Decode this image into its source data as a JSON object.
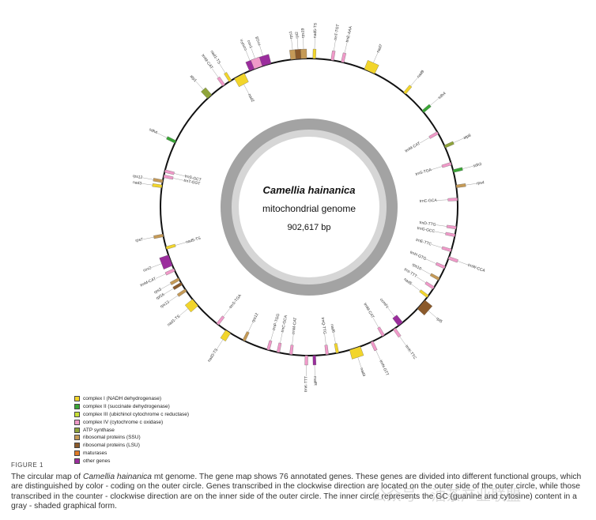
{
  "center": {
    "species": "Camellia hainanica",
    "subtitle": "mitochondrial genome",
    "length": "902,617 bp"
  },
  "legend": [
    {
      "label": "complex I (NADH dehydrogenase)",
      "color": "#f2d52b"
    },
    {
      "label": "complex II (succinate dehydrogenase)",
      "color": "#3aa636"
    },
    {
      "label": "complex III (ubichinol cytochrome c reductase)",
      "color": "#c7df37"
    },
    {
      "label": "complex IV (cytochrome c oxidase)",
      "color": "#f09ac9"
    },
    {
      "label": "ATP synthase",
      "color": "#8fa43b"
    },
    {
      "label": "ribosomal proteins (SSU)",
      "color": "#c59a57"
    },
    {
      "label": "ribosomal proteins (LSU)",
      "color": "#8b5a2b"
    },
    {
      "label": "maturases",
      "color": "#e07b27"
    },
    {
      "label": "other genes",
      "color": "#9b2d9d"
    }
  ],
  "genes": [
    {
      "name": "rrn18",
      "angle": -17,
      "strand": "out",
      "color": "#9b2d9d",
      "w": 4
    },
    {
      "name": "ccmFn",
      "angle": -22,
      "strand": "out",
      "color": "#9b2d9d",
      "w": 3
    },
    {
      "name": "rps1",
      "angle": -6,
      "strand": "out",
      "color": "#c59a57",
      "w": 2
    },
    {
      "name": "rpl2",
      "angle": -4,
      "strand": "out",
      "color": "#8b5a2b",
      "w": 2
    },
    {
      "name": "rps19",
      "angle": -2,
      "strand": "out",
      "color": "#c59a57",
      "w": 2
    },
    {
      "name": "nad5-TS",
      "angle": 2,
      "strand": "out",
      "color": "#f2d52b",
      "w": 1
    },
    {
      "name": "trnT-TGT",
      "angle": 9,
      "strand": "out",
      "color": "#f09ac9",
      "w": 1
    },
    {
      "name": "trnE-AAA",
      "angle": 13,
      "strand": "out",
      "color": "#f09ac9",
      "w": 1
    },
    {
      "name": "nad7",
      "angle": 24,
      "strand": "out",
      "color": "#f2d52b",
      "w": 4
    },
    {
      "name": "nad9",
      "angle": 40,
      "strand": "out",
      "color": "#f2d52b",
      "w": 1
    },
    {
      "name": "sdh4",
      "angle": 50,
      "strand": "out",
      "color": "#3aa636",
      "w": 1
    },
    {
      "name": "trnM-CAT",
      "angle": 60,
      "strand": "in",
      "color": "#f09ac9",
      "w": 1
    },
    {
      "name": "atp8",
      "angle": 66,
      "strand": "out",
      "color": "#8fa43b",
      "w": 1
    },
    {
      "name": "trnS-TGA",
      "angle": 73,
      "strand": "in",
      "color": "#f09ac9",
      "w": 1
    },
    {
      "name": "sdh3",
      "angle": 76,
      "strand": "out",
      "color": "#3aa636",
      "w": 1
    },
    {
      "name": "rps4",
      "angle": 82,
      "strand": "out",
      "color": "#c59a57",
      "w": 1
    },
    {
      "name": "trnC-GCA",
      "angle": 87,
      "strand": "in",
      "color": "#f09ac9",
      "w": 1
    },
    {
      "name": "trnD-TTG",
      "angle": 98,
      "strand": "in",
      "color": "#f09ac9",
      "w": 1
    },
    {
      "name": "trnG-GCC",
      "angle": 101,
      "strand": "in",
      "color": "#f09ac9",
      "w": 1
    },
    {
      "name": "trnE-TTC",
      "angle": 107,
      "strand": "in",
      "color": "#f09ac9",
      "w": 1
    },
    {
      "name": "trnW-CCA",
      "angle": 110,
      "strand": "out",
      "color": "#f09ac9",
      "w": 1
    },
    {
      "name": "trnH-GTG",
      "angle": 114,
      "strand": "in",
      "color": "#f09ac9",
      "w": 1
    },
    {
      "name": "rps10",
      "angle": 119,
      "strand": "in",
      "color": "#c59a57",
      "w": 1
    },
    {
      "name": "trnI-TTT",
      "angle": 123,
      "strand": "in",
      "color": "#f09ac9",
      "w": 1
    },
    {
      "name": "nad5",
      "angle": 127,
      "strand": "in",
      "color": "#f2d52b",
      "w": 1
    },
    {
      "name": "rpl5",
      "angle": 131,
      "strand": "out",
      "color": "#8b5a2b",
      "w": 4
    },
    {
      "name": "ccmFc",
      "angle": 142,
      "strand": "in",
      "color": "#9b2d9d",
      "w": 2
    },
    {
      "name": "trnK-TTC",
      "angle": 145,
      "strand": "out",
      "color": "#f09ac9",
      "w": 1
    },
    {
      "name": "trnM-CAT",
      "angle": 150,
      "strand": "in",
      "color": "#f09ac9",
      "w": 1
    },
    {
      "name": "trnN-GTT",
      "angle": 155,
      "strand": "out",
      "color": "#f09ac9",
      "w": 1
    },
    {
      "name": "nad4",
      "angle": 162,
      "strand": "out",
      "color": "#f2d52b",
      "w": 4
    },
    {
      "name": "nad6",
      "angle": 169,
      "strand": "in",
      "color": "#f2d52b",
      "w": 1
    },
    {
      "name": "trnQ-TTG",
      "angle": 173,
      "strand": "in",
      "color": "#f09ac9",
      "w": 1
    },
    {
      "name": "matR",
      "angle": 178,
      "strand": "out",
      "color": "#9b2d9d",
      "w": 1
    },
    {
      "name": "trnK-TTT",
      "angle": 181,
      "strand": "out",
      "color": "#f09ac9",
      "w": 1
    },
    {
      "name": "trnM-CAT",
      "angle": 187,
      "strand": "in",
      "color": "#f09ac9",
      "w": 1
    },
    {
      "name": "trnC-GCA",
      "angle": 192,
      "strand": "in",
      "color": "#f09ac9",
      "w": 1
    },
    {
      "name": "trnP-TGG",
      "angle": 196,
      "strand": "in",
      "color": "#f09ac9",
      "w": 1
    },
    {
      "name": "rps12",
      "angle": 206,
      "strand": "in",
      "color": "#c59a57",
      "w": 1
    },
    {
      "name": "nad3-TS",
      "angle": 213,
      "strand": "out",
      "color": "#f2d52b",
      "w": 2
    },
    {
      "name": "trnS-TGA",
      "angle": 218,
      "strand": "in",
      "color": "#f09ac9",
      "w": 1
    },
    {
      "name": "nad1-TS",
      "angle": 230,
      "strand": "out",
      "color": "#f2d52b",
      "w": 3
    },
    {
      "name": "rps13",
      "angle": 236,
      "strand": "out",
      "color": "#c59a57",
      "w": 1
    },
    {
      "name": "rpl16",
      "angle": 239,
      "strand": "out",
      "color": "#8b5a2b",
      "w": 1
    },
    {
      "name": "rps3",
      "angle": 241,
      "strand": "out",
      "color": "#c59a57",
      "w": 1
    },
    {
      "name": "trnM-CAT",
      "angle": 245,
      "strand": "out",
      "color": "#f09ac9",
      "w": 1
    },
    {
      "name": "cox2",
      "angle": 249,
      "strand": "out",
      "color": "#9b2d9d",
      "w": 4
    },
    {
      "name": "nad5-TS",
      "angle": 254,
      "strand": "in",
      "color": "#f2d52b",
      "w": 1
    },
    {
      "name": "rps7",
      "angle": 259,
      "strand": "out",
      "color": "#c59a57",
      "w": 1
    },
    {
      "name": "nad3",
      "angle": 278,
      "strand": "out",
      "color": "#f2d52b",
      "w": 1
    },
    {
      "name": "rps12",
      "angle": 280,
      "strand": "out",
      "color": "#c59a57",
      "w": 1
    },
    {
      "name": "trnT-GGT",
      "angle": 282,
      "strand": "in",
      "color": "#f09ac9",
      "w": 1
    },
    {
      "name": "trnS-GCT",
      "angle": 284,
      "strand": "in",
      "color": "#f09ac9",
      "w": 1
    },
    {
      "name": "sdh4",
      "angle": 296,
      "strand": "out",
      "color": "#3aa636",
      "w": 1
    },
    {
      "name": "atp1",
      "angle": 318,
      "strand": "out",
      "color": "#8fa43b",
      "w": 2
    },
    {
      "name": "trnM-CAT",
      "angle": 325,
      "strand": "out",
      "color": "#f09ac9",
      "w": 1
    },
    {
      "name": "nad1-TS",
      "angle": 328,
      "strand": "out",
      "color": "#f2d52b",
      "w": 1
    },
    {
      "name": "nad2",
      "angle": 332,
      "strand": "in",
      "color": "#f2d52b",
      "w": 4
    },
    {
      "name": "cox1",
      "angle": 340,
      "strand": "out",
      "color": "#f09ac9",
      "w": 3
    }
  ]
}
